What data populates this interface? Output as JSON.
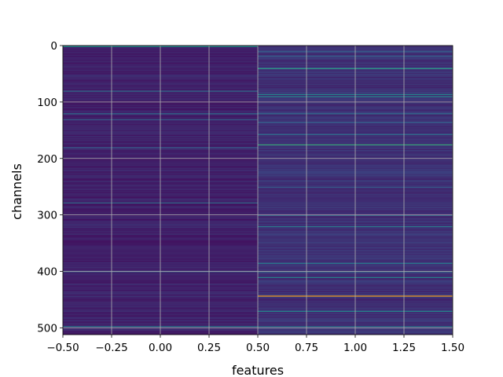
{
  "chart_data": {
    "type": "heatmap",
    "title": "",
    "xlabel": "features",
    "ylabel": "channels",
    "xlim": [
      -0.5,
      1.5
    ],
    "ylim": [
      512,
      0
    ],
    "y_inverted": true,
    "grid": true,
    "colormap": "viridis",
    "x_ticks": [
      {
        "value": -0.5,
        "label": "−0.50"
      },
      {
        "value": -0.25,
        "label": "−0.25"
      },
      {
        "value": 0.0,
        "label": "0.00"
      },
      {
        "value": 0.25,
        "label": "0.25"
      },
      {
        "value": 0.5,
        "label": "0.50"
      },
      {
        "value": 0.75,
        "label": "0.75"
      },
      {
        "value": 1.0,
        "label": "1.00"
      },
      {
        "value": 1.25,
        "label": "1.25"
      },
      {
        "value": 1.5,
        "label": "1.50"
      }
    ],
    "y_ticks": [
      {
        "value": 0,
        "label": "0"
      },
      {
        "value": 100,
        "label": "100"
      },
      {
        "value": 200,
        "label": "200"
      },
      {
        "value": 300,
        "label": "300"
      },
      {
        "value": 400,
        "label": "400"
      },
      {
        "value": 500,
        "label": "500"
      }
    ],
    "columns": [
      {
        "feature": 0,
        "base": 0.1,
        "highlights": [
          {
            "channel": 1,
            "value": 0.5
          },
          {
            "channel": 80,
            "value": 0.35
          },
          {
            "channel": 120,
            "value": 0.35
          },
          {
            "channel": 130,
            "value": 0.32
          },
          {
            "channel": 180,
            "value": 0.3
          },
          {
            "channel": 278,
            "value": 0.35
          },
          {
            "channel": 400,
            "value": 0.3
          },
          {
            "channel": 497,
            "value": 0.4
          }
        ]
      },
      {
        "feature": 1,
        "base": 0.15,
        "highlights": [
          {
            "channel": 10,
            "value": 0.3
          },
          {
            "channel": 18,
            "value": 0.3
          },
          {
            "channel": 40,
            "value": 0.55
          },
          {
            "channel": 86,
            "value": 0.45
          },
          {
            "channel": 90,
            "value": 0.45
          },
          {
            "channel": 120,
            "value": 0.35
          },
          {
            "channel": 135,
            "value": 0.3
          },
          {
            "channel": 157,
            "value": 0.35
          },
          {
            "channel": 175,
            "value": 0.6
          },
          {
            "channel": 250,
            "value": 0.3
          },
          {
            "channel": 300,
            "value": 0.35
          },
          {
            "channel": 320,
            "value": 0.4
          },
          {
            "channel": 385,
            "value": 0.4
          },
          {
            "channel": 400,
            "value": 0.35
          },
          {
            "channel": 410,
            "value": 0.45
          },
          {
            "channel": 443,
            "value": 1.0
          },
          {
            "channel": 470,
            "value": 0.45
          },
          {
            "channel": 497,
            "value": 0.4
          }
        ]
      }
    ]
  }
}
